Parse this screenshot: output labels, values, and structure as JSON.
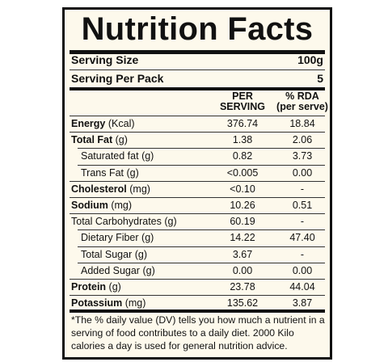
{
  "header": {
    "title": "Nutrition Facts"
  },
  "serving": [
    {
      "label": "Serving Size",
      "value": "100g"
    },
    {
      "label": "Serving Per Pack",
      "value": "5"
    }
  ],
  "table": {
    "columns": [
      [
        "PER",
        "SERVING"
      ],
      [
        "% RDA",
        "(per serve)"
      ]
    ],
    "rows": [
      [
        "Energy",
        "(Kcal)",
        "376.74",
        "18.84"
      ],
      [
        "Total Fat",
        "(g)",
        "1.38",
        "2.06"
      ],
      [
        "Saturated fat",
        "(g)",
        "0.82",
        "3.73"
      ],
      [
        "Trans Fat",
        "(g)",
        "<0.005",
        "0.00"
      ],
      [
        "Cholesterol",
        "(mg)",
        "<0.10",
        "-"
      ],
      [
        "Sodium",
        "(mg)",
        "10.26",
        "0.51"
      ],
      [
        "Total Carbohydrates",
        "(g)",
        "60.19",
        "-"
      ],
      [
        "Dietary Fiber",
        "(g)",
        "14.22",
        "47.40"
      ],
      [
        "Total Sugar",
        "(g)",
        "3.67",
        "-"
      ],
      [
        "Added Sugar",
        "(g)",
        "0.00",
        "0.00"
      ],
      [
        "Protein",
        "(g)",
        "23.78",
        "44.04"
      ],
      [
        "Potassium",
        "(mg)",
        "135.62",
        "3.87"
      ]
    ]
  },
  "footnote": "*The % daily value (DV) tells you how much a nutrient in a serving of food contributes to a daily diet. 2000 Kilo calories a day is used for general nutrition advice."
}
